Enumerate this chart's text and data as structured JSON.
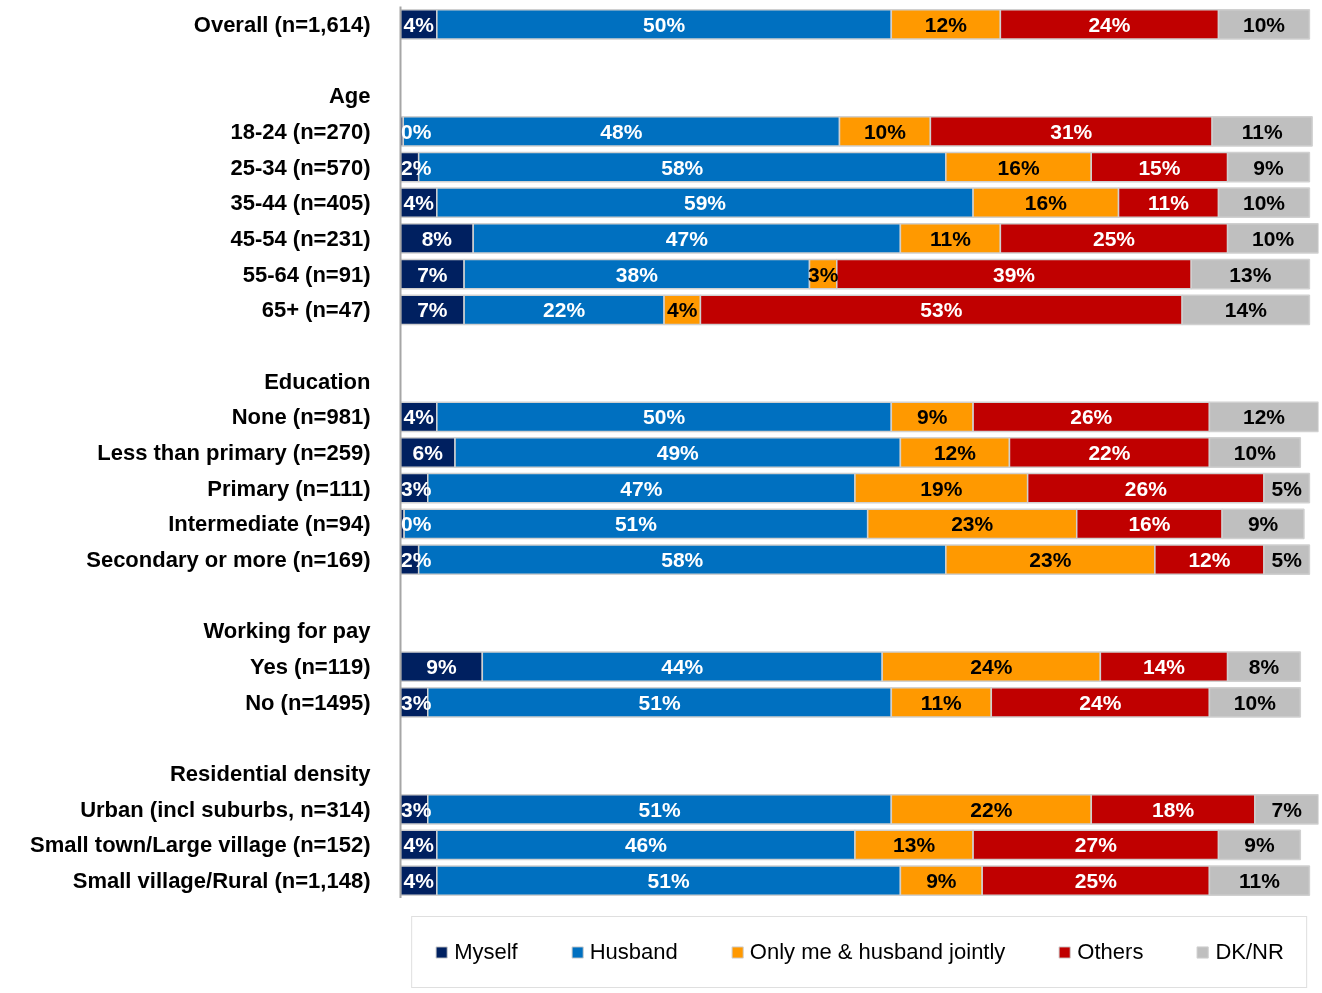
{
  "chart_data": {
    "type": "bar",
    "orientation": "horizontal",
    "stacked": true,
    "legend": "bottom",
    "tick_labels": "y",
    "xlim": [
      0,
      101
    ],
    "categories": [
      "Overall (n=1,614)",
      null,
      "Age",
      "18-24 (n=270)",
      "25-34 (n=570)",
      "35-44 (n=405)",
      "45-54 (n=231)",
      "55-64 (n=91)",
      "65+ (n=47)",
      null,
      "Education",
      "None (n=981)",
      "Less than primary (n=259)",
      "Primary (n=111)",
      "Intermediate (n=94)",
      "Secondary or more (n=169)",
      null,
      "Working for pay",
      "Yes (n=119)",
      "No (n=1495)",
      null,
      "Residential density",
      "Urban (incl suburbs, n=314)",
      "Small town/Large village (n=152)",
      "Small village/Rural (n=1,148)"
    ],
    "series": [
      {
        "name": "Myself",
        "color": "#002060",
        "values": [
          4,
          null,
          null,
          0.3,
          2,
          4,
          8,
          7,
          7,
          null,
          null,
          4,
          6,
          3,
          0.4,
          2,
          null,
          null,
          9,
          3,
          null,
          null,
          3,
          4,
          4
        ],
        "value_labels": [
          "4%",
          null,
          null,
          "0%",
          "2%",
          "4%",
          "8%",
          "7%",
          "7%",
          null,
          null,
          "4%",
          "6%",
          "3%",
          "0%",
          "2%",
          null,
          null,
          "9%",
          "3%",
          null,
          null,
          "3%",
          "4%",
          "4%"
        ]
      },
      {
        "name": "Husband",
        "color": "#0070c0",
        "values": [
          50,
          null,
          null,
          48,
          58,
          59,
          47,
          38,
          22,
          null,
          null,
          50,
          49,
          47,
          51,
          58,
          null,
          null,
          44,
          51,
          null,
          null,
          51,
          46,
          51
        ],
        "value_labels": [
          "50%",
          null,
          null,
          "48%",
          "58%",
          "59%",
          "47%",
          "38%",
          "22%",
          null,
          null,
          "50%",
          "49%",
          "47%",
          "51%",
          "58%",
          null,
          null,
          "44%",
          "51%",
          null,
          null,
          "51%",
          "46%",
          "51%"
        ]
      },
      {
        "name": "Only me & husband jointly",
        "color": "#ff9900",
        "values": [
          12,
          null,
          null,
          10,
          16,
          16,
          11,
          3,
          4,
          null,
          null,
          9,
          12,
          19,
          23,
          23,
          null,
          null,
          24,
          11,
          null,
          null,
          22,
          13,
          9
        ],
        "value_labels": [
          "12%",
          null,
          null,
          "10%",
          "16%",
          "16%",
          "11%",
          "3%",
          "4%",
          null,
          null,
          "9%",
          "12%",
          "19%",
          "23%",
          "23%",
          null,
          null,
          "24%",
          "11%",
          null,
          null,
          "22%",
          "13%",
          "9%"
        ]
      },
      {
        "name": "Others",
        "color": "#c00000",
        "values": [
          24,
          null,
          null,
          31,
          15,
          11,
          25,
          39,
          53,
          null,
          null,
          26,
          22,
          26,
          16,
          12,
          null,
          null,
          14,
          24,
          null,
          null,
          18,
          27,
          25
        ],
        "value_labels": [
          "24%",
          null,
          null,
          "31%",
          "15%",
          "11%",
          "25%",
          "39%",
          "53%",
          null,
          null,
          "26%",
          "22%",
          "26%",
          "16%",
          "12%",
          null,
          null,
          "14%",
          "24%",
          null,
          null,
          "18%",
          "27%",
          "25%"
        ]
      },
      {
        "name": "DK/NR",
        "color": "#bfbfbf",
        "values": [
          10,
          null,
          null,
          11,
          9,
          10,
          10,
          13,
          14,
          null,
          null,
          12,
          10,
          5,
          9,
          5,
          null,
          null,
          8,
          10,
          null,
          null,
          7,
          9,
          11
        ],
        "value_labels": [
          "10%",
          null,
          null,
          "11%",
          "9%",
          "10%",
          "10%",
          "13%",
          "14%",
          null,
          null,
          "12%",
          "10%",
          "5%",
          "9%",
          "5%",
          null,
          null,
          "8%",
          "10%",
          null,
          null,
          "7%",
          "9%",
          "11%"
        ]
      }
    ]
  }
}
